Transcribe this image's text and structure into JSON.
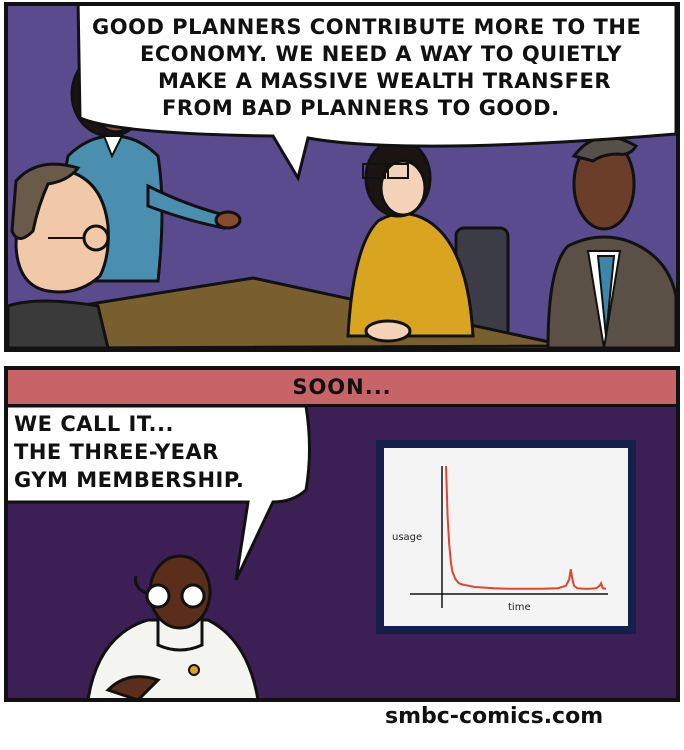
{
  "panel1": {
    "speech_lines": [
      "GOOD PLANNERS CONTRIBUTE MORE TO THE",
      "ECONOMY. WE NEED A WAY TO QUIETLY",
      "MAKE A MASSIVE WEALTH TRANSFER",
      "FROM BAD PLANNERS TO GOOD."
    ]
  },
  "panel2": {
    "caption": "SOON...",
    "speech_lines": [
      "WE CALL IT...",
      "THE THREE-YEAR",
      "GYM MEMBERSHIP."
    ]
  },
  "chart_data": {
    "type": "line",
    "title": "",
    "xlabel": "time",
    "ylabel": "usage",
    "grid": false,
    "legend": "none",
    "line_color": "#e0442c",
    "x": [
      0,
      1,
      2,
      3,
      4,
      6,
      8,
      10,
      14,
      18,
      24,
      30,
      40,
      50,
      60,
      70,
      75,
      77,
      78,
      79,
      80,
      82,
      86,
      90,
      94,
      96,
      97,
      98,
      100
    ],
    "y": [
      100,
      60,
      38,
      24,
      16,
      10,
      7,
      6,
      5,
      4,
      3.5,
      3,
      2.5,
      2.5,
      2.5,
      3,
      5,
      10,
      18,
      10,
      5,
      3,
      2.5,
      2.5,
      3,
      5,
      7,
      3,
      2.5
    ],
    "xlim": [
      0,
      100
    ],
    "ylim": [
      0,
      100
    ]
  },
  "signature": "smbc-comics.com",
  "colors": {
    "panel1_wall": "#5a4a8e",
    "panel2_wall": "#3b1f55",
    "caption_bar": "#c66468",
    "table": "#7a5f2e"
  }
}
